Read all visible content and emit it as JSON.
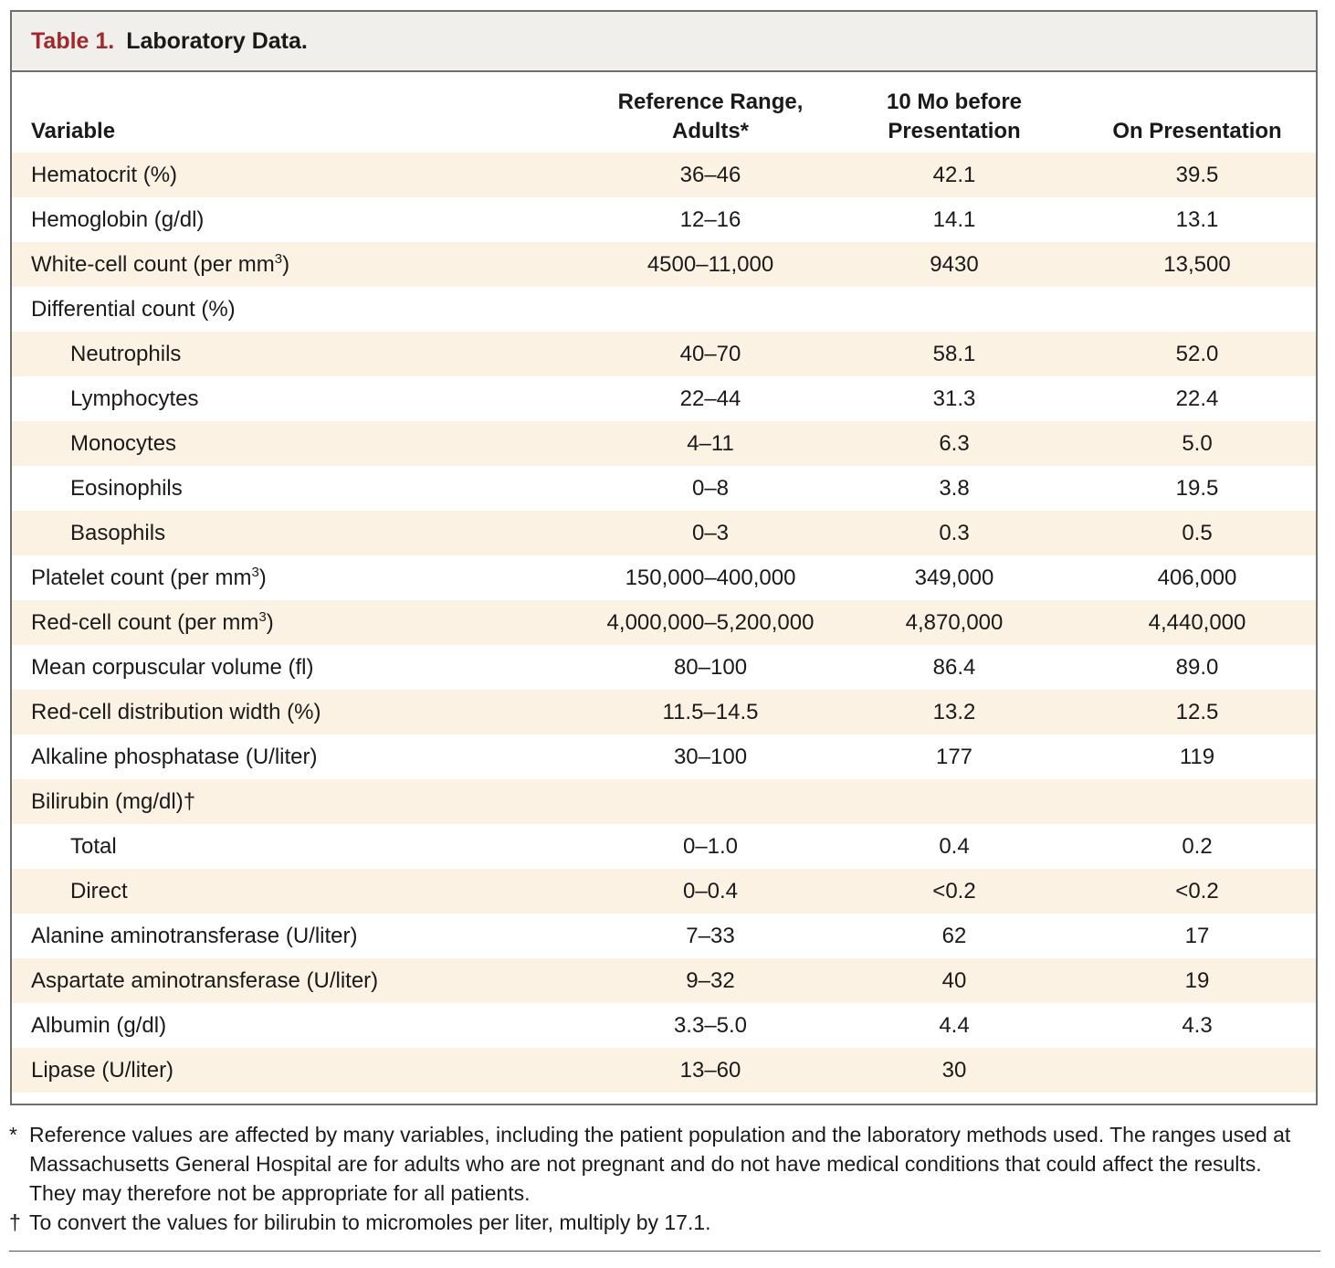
{
  "title": {
    "number": "Table 1.",
    "text": "Laboratory Data."
  },
  "header": {
    "variable": "Variable",
    "reference_line1": "Reference Range,",
    "reference_line2": "Adults*",
    "before_line1": "10 Mo before",
    "before_line2": "Presentation",
    "on_presentation": "On Presentation"
  },
  "rows": [
    {
      "variable": "Hematocrit (%)",
      "sup": "",
      "suffix": "",
      "reference": "36–46",
      "before": "42.1",
      "on": "39.5"
    },
    {
      "variable": "Hemoglobin (g/dl)",
      "sup": "",
      "suffix": "",
      "reference": "12–16",
      "before": "14.1",
      "on": "13.1"
    },
    {
      "variable": "White-cell count (per mm",
      "sup": "3",
      "suffix": ")",
      "reference": "4500–11,000",
      "before": "9430",
      "on": "13,500"
    },
    {
      "variable": "Differential count (%)",
      "sup": "",
      "suffix": "",
      "reference": "",
      "before": "",
      "on": ""
    },
    {
      "variable": "Neutrophils",
      "sup": "",
      "suffix": "",
      "reference": "40–70",
      "before": "58.1",
      "on": "52.0"
    },
    {
      "variable": "Lymphocytes",
      "sup": "",
      "suffix": "",
      "reference": "22–44",
      "before": "31.3",
      "on": "22.4"
    },
    {
      "variable": "Monocytes",
      "sup": "",
      "suffix": "",
      "reference": "4–11",
      "before": "6.3",
      "on": "5.0"
    },
    {
      "variable": "Eosinophils",
      "sup": "",
      "suffix": "",
      "reference": "0–8",
      "before": "3.8",
      "on": "19.5"
    },
    {
      "variable": "Basophils",
      "sup": "",
      "suffix": "",
      "reference": "0–3",
      "before": "0.3",
      "on": "0.5"
    },
    {
      "variable": "Platelet count (per mm",
      "sup": "3",
      "suffix": ")",
      "reference": "150,000–400,000",
      "before": "349,000",
      "on": "406,000"
    },
    {
      "variable": "Red-cell count (per mm",
      "sup": "3",
      "suffix": ")",
      "reference": "4,000,000–5,200,000",
      "before": "4,870,000",
      "on": "4,440,000"
    },
    {
      "variable": "Mean corpuscular volume (fl)",
      "sup": "",
      "suffix": "",
      "reference": "80–100",
      "before": "86.4",
      "on": "89.0"
    },
    {
      "variable": "Red-cell distribution width (%)",
      "sup": "",
      "suffix": "",
      "reference": "11.5–14.5",
      "before": "13.2",
      "on": "12.5"
    },
    {
      "variable": "Alkaline phosphatase (U/liter)",
      "sup": "",
      "suffix": "",
      "reference": "30–100",
      "before": "177",
      "on": "119"
    },
    {
      "variable": "Bilirubin (mg/dl)†",
      "sup": "",
      "suffix": "",
      "reference": "",
      "before": "",
      "on": ""
    },
    {
      "variable": "Total",
      "sup": "",
      "suffix": "",
      "reference": "0–1.0",
      "before": "0.4",
      "on": "0.2"
    },
    {
      "variable": "Direct",
      "sup": "",
      "suffix": "",
      "reference": "0–0.4",
      "before": "<0.2",
      "on": "<0.2"
    },
    {
      "variable": "Alanine aminotransferase (U/liter)",
      "sup": "",
      "suffix": "",
      "reference": "7–33",
      "before": "62",
      "on": "17"
    },
    {
      "variable": "Aspartate aminotransferase (U/liter)",
      "sup": "",
      "suffix": "",
      "reference": "9–32",
      "before": "40",
      "on": "19"
    },
    {
      "variable": "Albumin (g/dl)",
      "sup": "",
      "suffix": "",
      "reference": "3.3–5.0",
      "before": "4.4",
      "on": "4.3"
    },
    {
      "variable": "Lipase (U/liter)",
      "sup": "",
      "suffix": "",
      "reference": "13–60",
      "before": "30",
      "on": ""
    }
  ],
  "footnotes": [
    {
      "mark": "*",
      "text": "Reference values are affected by many variables, including the patient population and the laboratory methods used. The ranges used at Massachusetts General Hospital are for adults who are not pregnant and do not have medical conditions that could affect the results. They may therefore not be appropriate for all patients."
    },
    {
      "mark": "†",
      "text": "To convert the values for bilirubin to micromoles per liter, multiply by 17.1."
    }
  ]
}
